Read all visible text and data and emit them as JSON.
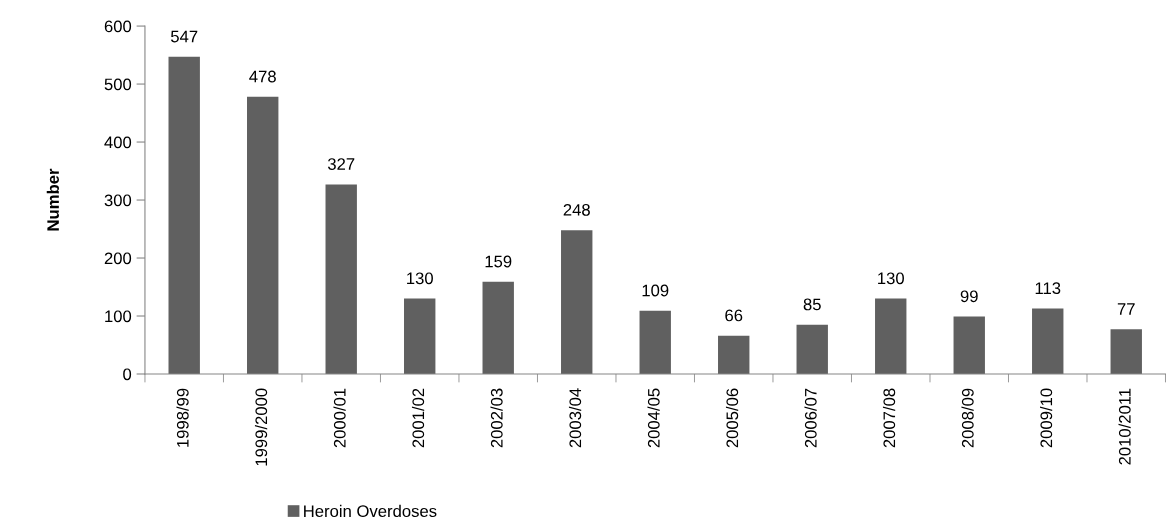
{
  "chart_data": {
    "type": "bar",
    "ylabel": "Number",
    "categories": [
      "1998/99",
      "1999/2000",
      "2000/01",
      "2001/02",
      "2002/03",
      "2003/04",
      "2004/05",
      "2005/06",
      "2006/07",
      "2007/08",
      "2008/09",
      "2009/10",
      "2010/2011"
    ],
    "series": [
      {
        "name": "Heroin Overdoses",
        "color": "#606060",
        "values": [
          547,
          478,
          327,
          130,
          159,
          248,
          109,
          66,
          85,
          130,
          99,
          113,
          77
        ]
      }
    ],
    "ylim": [
      0,
      600
    ],
    "yticks": [
      0,
      100,
      200,
      300,
      400,
      500,
      600
    ],
    "data_labels": true,
    "grid": false,
    "legend": "bottom"
  }
}
